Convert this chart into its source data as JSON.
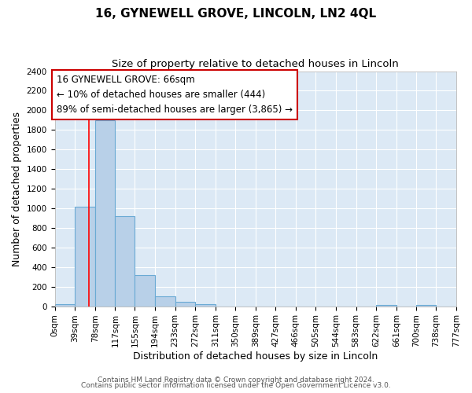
{
  "title": "16, GYNEWELL GROVE, LINCOLN, LN2 4QL",
  "subtitle": "Size of property relative to detached houses in Lincoln",
  "xlabel": "Distribution of detached houses by size in Lincoln",
  "ylabel": "Number of detached properties",
  "bin_edges": [
    0,
    39,
    78,
    117,
    155,
    194,
    233,
    272,
    311,
    350,
    389,
    427,
    466,
    505,
    544,
    583,
    622,
    661,
    700,
    738,
    777
  ],
  "bin_labels": [
    "0sqm",
    "39sqm",
    "78sqm",
    "117sqm",
    "155sqm",
    "194sqm",
    "233sqm",
    "272sqm",
    "311sqm",
    "350sqm",
    "389sqm",
    "427sqm",
    "466sqm",
    "505sqm",
    "544sqm",
    "583sqm",
    "622sqm",
    "661sqm",
    "700sqm",
    "738sqm",
    "777sqm"
  ],
  "counts": [
    20,
    1020,
    1900,
    920,
    315,
    105,
    45,
    20,
    0,
    0,
    0,
    0,
    0,
    0,
    0,
    0,
    15,
    0,
    10,
    0
  ],
  "bar_color": "#b8d0e8",
  "bar_edge_color": "#6aaad4",
  "red_line_x": 66,
  "annotation_text": "16 GYNEWELL GROVE: 66sqm\n← 10% of detached houses are smaller (444)\n89% of semi-detached houses are larger (3,865) →",
  "annotation_box_color": "#ffffff",
  "annotation_box_edge": "#cc0000",
  "ylim": [
    0,
    2400
  ],
  "yticks": [
    0,
    200,
    400,
    600,
    800,
    1000,
    1200,
    1400,
    1600,
    1800,
    2000,
    2200,
    2400
  ],
  "figure_bg_color": "#ffffff",
  "plot_bg_color": "#dce9f5",
  "grid_color": "#ffffff",
  "footer_line1": "Contains HM Land Registry data © Crown copyright and database right 2024.",
  "footer_line2": "Contains public sector information licensed under the Open Government Licence v3.0.",
  "title_fontsize": 11,
  "subtitle_fontsize": 9.5,
  "axis_label_fontsize": 9,
  "tick_fontsize": 7.5,
  "footer_fontsize": 6.5
}
